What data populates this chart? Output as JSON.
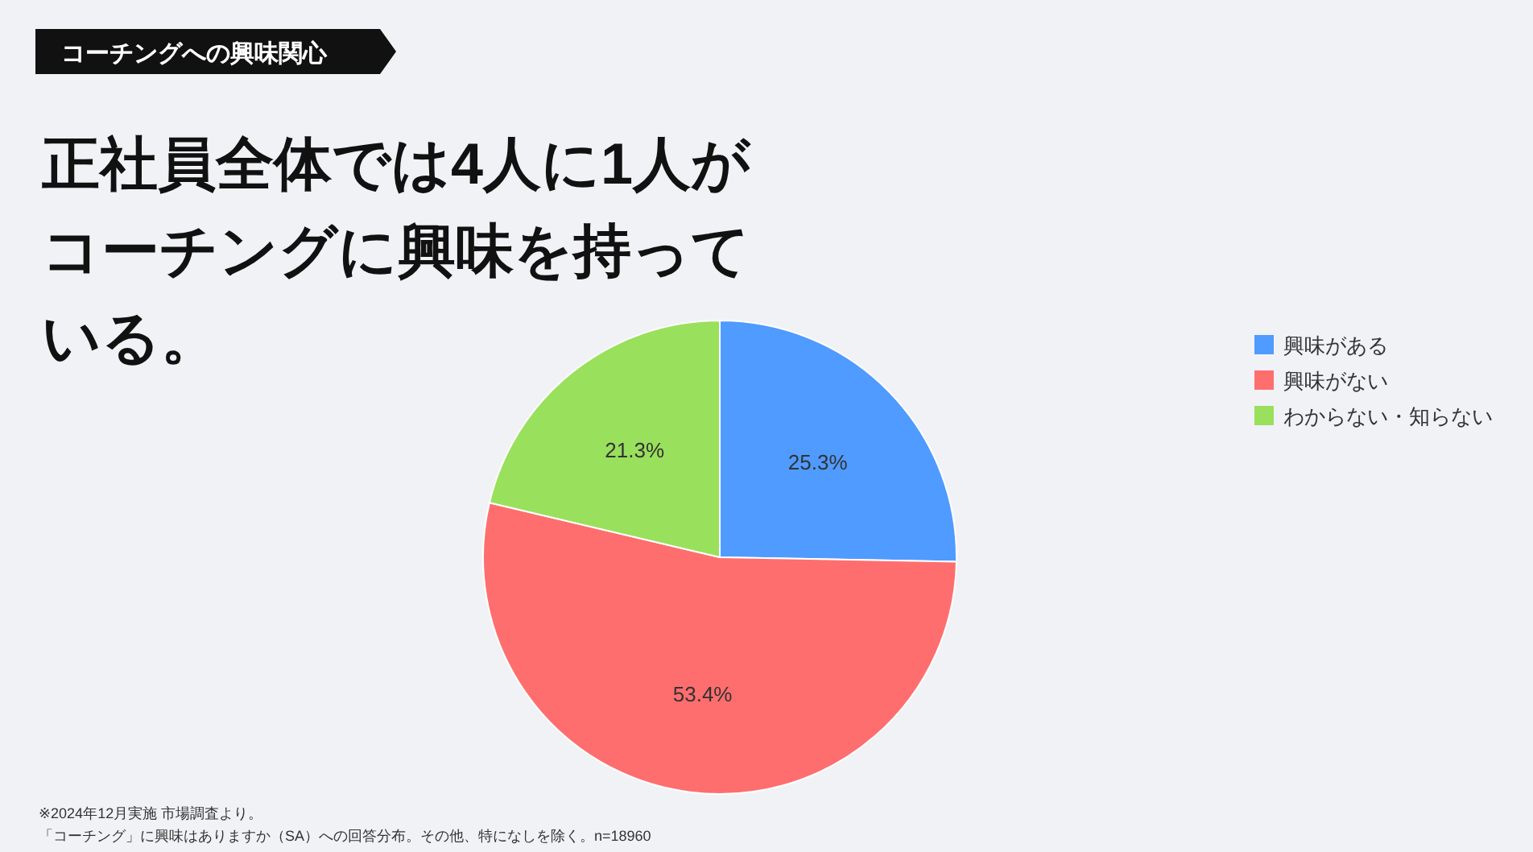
{
  "chart_data": {
    "type": "pie",
    "subtitle": "コーチングへの興味関心",
    "title": "正社員全体では4人に1人がコーチングに興味を持っている。",
    "categories": [
      "興味がある",
      "興味がない",
      "わからない・知らない"
    ],
    "values": [
      25.3,
      53.4,
      21.3
    ],
    "colors": [
      "#4f9bff",
      "#ff6e6e",
      "#99e05c"
    ],
    "value_labels": [
      "25.3%",
      "53.4%",
      "21.3%"
    ],
    "legend": "right",
    "annotations": [
      "※2024年12月実施 市場調査より。",
      "「コーチング」に興味はありますか（SA）への回答分布。その他、特になしを除く。n=18960"
    ]
  }
}
